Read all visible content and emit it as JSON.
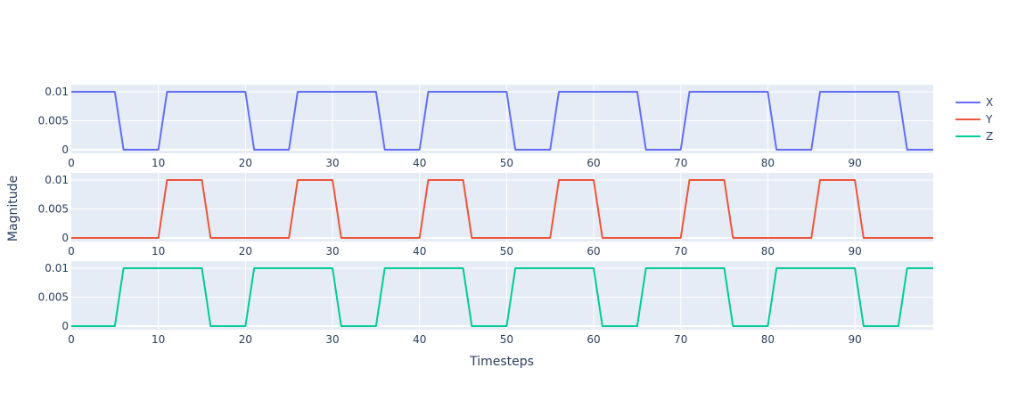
{
  "chart_data": {
    "type": "line",
    "xlabel": "Timesteps",
    "ylabel": "Magnitude",
    "xlim": [
      0,
      99
    ],
    "ylim": [
      0,
      0.01
    ],
    "x_ticks": [
      0,
      10,
      20,
      30,
      40,
      50,
      60,
      70,
      80,
      90
    ],
    "y_ticks": [
      0,
      0.005,
      0.01
    ],
    "y_tick_labels": [
      "0",
      "0.005",
      "0.01"
    ],
    "legend_position": "top-right",
    "grid": true,
    "plot_background": "#e5ecf6",
    "series": [
      {
        "name": "X",
        "color": "#636efa",
        "points": [
          [
            0,
            0.01
          ],
          [
            5,
            0.01
          ],
          [
            6,
            0
          ],
          [
            10,
            0
          ],
          [
            11,
            0.01
          ],
          [
            20,
            0.01
          ],
          [
            21,
            0
          ],
          [
            25,
            0
          ],
          [
            26,
            0.01
          ],
          [
            35,
            0.01
          ],
          [
            36,
            0
          ],
          [
            40,
            0
          ],
          [
            41,
            0.01
          ],
          [
            50,
            0.01
          ],
          [
            51,
            0
          ],
          [
            55,
            0
          ],
          [
            56,
            0.01
          ],
          [
            65,
            0.01
          ],
          [
            66,
            0
          ],
          [
            70,
            0
          ],
          [
            71,
            0.01
          ],
          [
            80,
            0.01
          ],
          [
            81,
            0
          ],
          [
            85,
            0
          ],
          [
            86,
            0.01
          ],
          [
            95,
            0.01
          ],
          [
            96,
            0
          ],
          [
            99,
            0
          ]
        ]
      },
      {
        "name": "Y",
        "color": "#ef553b",
        "points": [
          [
            0,
            0
          ],
          [
            10,
            0
          ],
          [
            11,
            0.01
          ],
          [
            15,
            0.01
          ],
          [
            16,
            0
          ],
          [
            25,
            0
          ],
          [
            26,
            0.01
          ],
          [
            30,
            0.01
          ],
          [
            31,
            0
          ],
          [
            40,
            0
          ],
          [
            41,
            0.01
          ],
          [
            45,
            0.01
          ],
          [
            46,
            0
          ],
          [
            55,
            0
          ],
          [
            56,
            0.01
          ],
          [
            60,
            0.01
          ],
          [
            61,
            0
          ],
          [
            70,
            0
          ],
          [
            71,
            0.01
          ],
          [
            75,
            0.01
          ],
          [
            76,
            0
          ],
          [
            85,
            0
          ],
          [
            86,
            0.01
          ],
          [
            90,
            0.01
          ],
          [
            91,
            0
          ],
          [
            99,
            0
          ]
        ]
      },
      {
        "name": "Z",
        "color": "#00cc96",
        "points": [
          [
            0,
            0
          ],
          [
            5,
            0
          ],
          [
            6,
            0.01
          ],
          [
            15,
            0.01
          ],
          [
            16,
            0
          ],
          [
            20,
            0
          ],
          [
            21,
            0.01
          ],
          [
            30,
            0.01
          ],
          [
            31,
            0
          ],
          [
            35,
            0
          ],
          [
            36,
            0.01
          ],
          [
            45,
            0.01
          ],
          [
            46,
            0
          ],
          [
            50,
            0
          ],
          [
            51,
            0.01
          ],
          [
            60,
            0.01
          ],
          [
            61,
            0
          ],
          [
            65,
            0
          ],
          [
            66,
            0.01
          ],
          [
            75,
            0.01
          ],
          [
            76,
            0
          ],
          [
            80,
            0
          ],
          [
            81,
            0.01
          ],
          [
            90,
            0.01
          ],
          [
            91,
            0
          ],
          [
            95,
            0
          ],
          [
            96,
            0.01
          ],
          [
            99,
            0.01
          ]
        ]
      }
    ]
  }
}
